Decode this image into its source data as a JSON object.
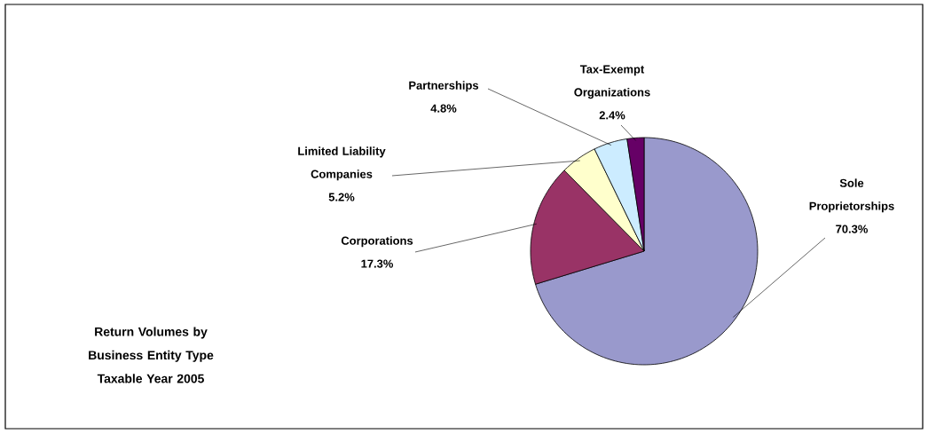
{
  "chart_data": {
    "type": "pie",
    "title": "Return Volumes by Business Entity Type",
    "subtitle": "Taxable Year 2005",
    "categories": [
      "Sole Proprietorships",
      "Corporations",
      "Limited Liability Companies",
      "Partnerships",
      "Tax-Exempt Organizations"
    ],
    "values": [
      70.3,
      17.3,
      5.2,
      4.8,
      2.4
    ],
    "value_labels": [
      "70.3%",
      "17.3%",
      "5.2%",
      "4.8%",
      "2.4%"
    ],
    "colors": [
      "#9999cc",
      "#993366",
      "#ffffcc",
      "#ccecff",
      "#660066"
    ]
  }
}
